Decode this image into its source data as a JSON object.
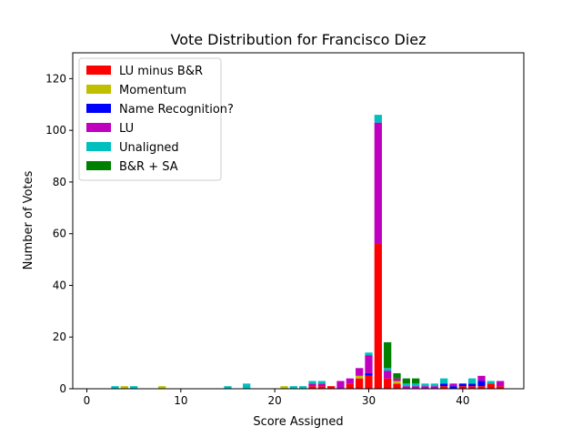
{
  "chart_data": {
    "type": "bar",
    "stacked": true,
    "title": "Vote Distribution for Francisco Diez",
    "xlabel": "Score Assigned",
    "ylabel": "Number of Votes",
    "xlim": [
      -1.5,
      46.5
    ],
    "ylim": [
      0,
      130
    ],
    "xticks": [
      0,
      10,
      20,
      30,
      40
    ],
    "yticks": [
      0,
      20,
      40,
      60,
      80,
      100,
      120
    ],
    "legend_position": "upper-left",
    "x": [
      3,
      4,
      5,
      8,
      15,
      17,
      21,
      22,
      23,
      24,
      25,
      26,
      27,
      28,
      29,
      30,
      31,
      32,
      33,
      34,
      35,
      36,
      37,
      38,
      39,
      40,
      41,
      42,
      43,
      44
    ],
    "series": [
      {
        "name": "LU minus B&R",
        "color": "#ff0000",
        "values": [
          0,
          0,
          0,
          0,
          0,
          0,
          0,
          0,
          0,
          1,
          1,
          1,
          0,
          2,
          4,
          5,
          56,
          4,
          2,
          0,
          0,
          0,
          0,
          1,
          0,
          1,
          1,
          1,
          2,
          1
        ]
      },
      {
        "name": "Momentum",
        "color": "#bfbf00",
        "values": [
          0,
          1,
          0,
          1,
          0,
          0,
          1,
          0,
          0,
          0,
          0,
          0,
          0,
          0,
          1,
          0,
          0,
          0,
          1,
          0,
          0,
          0,
          0,
          0,
          0,
          0,
          0,
          0,
          0,
          0
        ]
      },
      {
        "name": "Name Recognition?",
        "color": "#0000ff",
        "values": [
          0,
          0,
          0,
          0,
          0,
          0,
          0,
          0,
          0,
          0,
          0,
          0,
          0,
          0,
          0,
          1,
          0,
          0,
          0,
          0,
          0,
          0,
          0,
          1,
          1,
          1,
          1,
          2,
          0,
          0
        ]
      },
      {
        "name": "LU",
        "color": "#bf00bf",
        "values": [
          0,
          0,
          0,
          0,
          0,
          0,
          0,
          0,
          0,
          1,
          1,
          0,
          3,
          2,
          3,
          7,
          47,
          3,
          1,
          1,
          1,
          1,
          1,
          0,
          1,
          0,
          0,
          2,
          0,
          2
        ]
      },
      {
        "name": "Unaligned",
        "color": "#00bfbf",
        "values": [
          1,
          0,
          1,
          0,
          1,
          2,
          0,
          1,
          1,
          1,
          1,
          0,
          0,
          0,
          0,
          1,
          3,
          1,
          0,
          1,
          1,
          1,
          1,
          2,
          0,
          0,
          2,
          0,
          1,
          0
        ]
      },
      {
        "name": "B&R + SA",
        "color": "#008000",
        "values": [
          0,
          0,
          0,
          0,
          0,
          0,
          0,
          0,
          0,
          0,
          0,
          0,
          0,
          0,
          0,
          0,
          0,
          10,
          2,
          2,
          2,
          0,
          0,
          0,
          0,
          0,
          0,
          0,
          0,
          0
        ]
      }
    ]
  }
}
